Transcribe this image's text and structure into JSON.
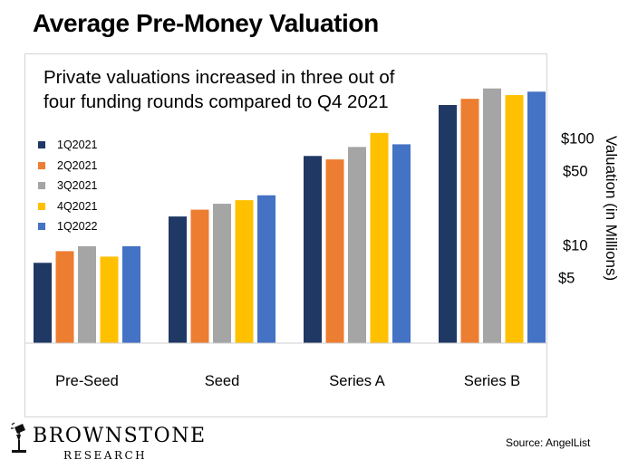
{
  "title": "Average Pre-Money Valuation",
  "subtitle": "Private valuations increased in three out of four funding rounds compared to Q4 2021",
  "source": "Source: AngelList",
  "logo": {
    "main": "BROWNSTONE",
    "sub": "RESEARCH",
    "icon": "lamp-icon"
  },
  "chart_data": {
    "type": "bar",
    "categories": [
      "Pre-Seed",
      "Seed",
      "Series A",
      "Series B"
    ],
    "series": [
      {
        "name": "1Q2021",
        "color": "#203864",
        "values": [
          7,
          19,
          70,
          210
        ]
      },
      {
        "name": "2Q2021",
        "color": "#ED7D31",
        "values": [
          9,
          22,
          65,
          240
        ]
      },
      {
        "name": "3Q2021",
        "color": "#A5A5A5",
        "values": [
          10,
          25,
          85,
          300
        ]
      },
      {
        "name": "4Q2021",
        "color": "#FFC000",
        "values": [
          8,
          27,
          115,
          260
        ]
      },
      {
        "name": "1Q2022",
        "color": "#4472C4",
        "values": [
          10,
          30,
          90,
          280
        ]
      }
    ],
    "ylabel": "Valuation (in Millions)",
    "yscale": "log",
    "ylim": [
      2,
      300
    ],
    "yticks": [
      {
        "value": 5,
        "label": "$5"
      },
      {
        "value": 10,
        "label": "$10"
      },
      {
        "value": 50,
        "label": "$50"
      },
      {
        "value": 100,
        "label": "$100"
      }
    ],
    "legend_position": "left",
    "grid": false
  }
}
